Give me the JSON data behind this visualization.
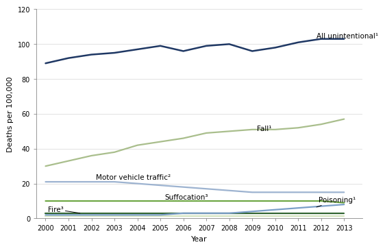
{
  "years": [
    2000,
    2001,
    2002,
    2003,
    2004,
    2005,
    2006,
    2007,
    2008,
    2009,
    2010,
    2011,
    2012,
    2013
  ],
  "all_unintentional": [
    89,
    92,
    94,
    95,
    97,
    99,
    96,
    99,
    100,
    96,
    98,
    101,
    103,
    103
  ],
  "fall": [
    30,
    33,
    36,
    38,
    42,
    44,
    46,
    49,
    50,
    51,
    51,
    52,
    54,
    57
  ],
  "motor_vehicle": [
    21,
    21,
    21,
    21,
    20,
    19,
    18,
    17,
    16,
    15,
    15,
    15,
    15,
    15
  ],
  "suffocation": [
    10,
    10,
    10,
    10,
    10,
    10,
    10,
    10,
    10,
    10,
    10,
    10,
    10,
    9
  ],
  "poisoning": [
    2,
    2,
    2,
    2,
    2,
    2,
    3,
    3,
    3,
    4,
    5,
    6,
    7,
    8
  ],
  "fire": [
    3,
    3,
    3,
    3,
    3,
    3,
    3,
    3,
    3,
    3,
    3,
    3,
    3,
    3
  ],
  "other_low": [
    1.5,
    1.5,
    1.5,
    1.5,
    1.5,
    1.5,
    1.5,
    1.5,
    1.5,
    1.5,
    1.5,
    1.5,
    1.5,
    1.5
  ],
  "colors": {
    "all_unintentional": "#1f3864",
    "fall": "#a9be8c",
    "motor_vehicle": "#9db3d0",
    "suffocation": "#70a846",
    "poisoning": "#7b9fc8",
    "fire": "#336633",
    "other_low": "#d5e4c0"
  },
  "label_positions": {
    "all_unintentional": [
      2011.8,
      104.5,
      "left",
      "center"
    ],
    "fall": [
      2009.2,
      50.5,
      "left",
      "center"
    ],
    "motor_vehicle": [
      2002.2,
      22.8,
      "left",
      "center"
    ],
    "suffocation": [
      2005.2,
      12.0,
      "left",
      "center"
    ],
    "poisoning": [
      2012.1,
      10.0,
      "left",
      "center"
    ],
    "fire": [
      2000.1,
      5.0,
      "left",
      "center"
    ]
  },
  "labels": {
    "all_unintentional": "All unintentional¹",
    "fall": "Fall¹",
    "motor_vehicle": "Motor vehicle traffic²",
    "suffocation": "Suffocation³",
    "poisoning": "Poisoning¹",
    "fire": "Fire³"
  },
  "xlabel": "Year",
  "ylabel": "Deaths per 100,000",
  "ylim": [
    0,
    120
  ],
  "yticks": [
    0,
    20,
    40,
    60,
    80,
    100,
    120
  ],
  "xlim": [
    1999.6,
    2013.8
  ],
  "fontsize_labels": 7.5,
  "fontsize_axis": 8,
  "fontsize_ticks": 7,
  "linewidth": 1.6
}
